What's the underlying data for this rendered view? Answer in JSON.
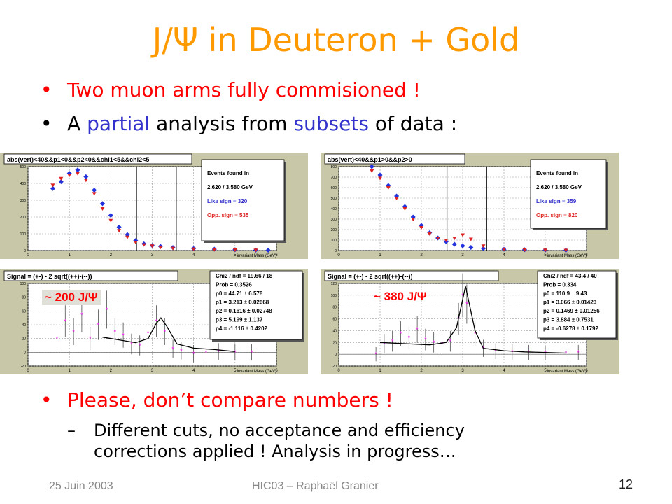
{
  "slide": {
    "title": "J/Ψ in Deuteron + Gold",
    "bullets": [
      {
        "text": "Two muon arms fully commisioned !"
      },
      {
        "parts": [
          "A ",
          "partial",
          " analysis from ",
          "subsets",
          " of data :"
        ]
      },
      {
        "text": "Please, don’t compare numbers !"
      }
    ],
    "sub_bullet": {
      "line1": "Different cuts, no acceptance and efficiency",
      "line2": "corrections applied ! Analysis in progress…"
    },
    "footer": {
      "date": "25 Juin 2003",
      "center": "HIC03 – Raphaël Granier",
      "page": "12"
    }
  },
  "colors": {
    "title": "#ff9900",
    "bullet": "#ff0000",
    "accent_blue": "#3333cc",
    "panel_bg": "#c8c8a8"
  },
  "chart_data": [
    {
      "type": "scatter",
      "title": "abs(vert)<40&&p1<0&&p2<0&&chi1<5&&chi2<5",
      "xlabel": "invariant Mass (GeV)",
      "xlim": [
        0,
        6
      ],
      "ylim": [
        0,
        500
      ],
      "x_ticks": [
        "0",
        "1",
        "2",
        "3",
        "4",
        "5",
        "6"
      ],
      "y_ticks": [
        "0",
        "100",
        "200",
        "300",
        "400",
        "500"
      ],
      "stats": [
        "Events found in",
        "2.620 / 3.580 GeV",
        "Like sign = 320",
        "Opp. sign = 535"
      ],
      "series": [
        {
          "color": "#2233dd",
          "values": [
            [
              0.6,
              370
            ],
            [
              0.8,
              410
            ],
            [
              1.0,
              460
            ],
            [
              1.2,
              480
            ],
            [
              1.4,
              440
            ],
            [
              1.6,
              360
            ],
            [
              1.8,
              280
            ],
            [
              2.0,
              210
            ],
            [
              2.2,
              140
            ],
            [
              2.4,
              95
            ],
            [
              2.6,
              60
            ],
            [
              2.8,
              40
            ],
            [
              3.0,
              30
            ],
            [
              3.2,
              25
            ],
            [
              3.5,
              18
            ],
            [
              4.0,
              12
            ],
            [
              4.5,
              8
            ],
            [
              5.0,
              5
            ],
            [
              5.5,
              3
            ],
            [
              5.8,
              2
            ]
          ]
        },
        {
          "color": "#dd2222",
          "values": [
            [
              0.6,
              390
            ],
            [
              0.8,
              430
            ],
            [
              1.0,
              450
            ],
            [
              1.2,
              460
            ],
            [
              1.4,
              420
            ],
            [
              1.6,
              340
            ],
            [
              1.8,
              250
            ],
            [
              2.0,
              180
            ],
            [
              2.2,
              120
            ],
            [
              2.4,
              80
            ],
            [
              2.6,
              50
            ],
            [
              2.8,
              35
            ],
            [
              3.0,
              28
            ],
            [
              3.2,
              20
            ],
            [
              3.5,
              14
            ],
            [
              4.0,
              10
            ],
            [
              4.5,
              6
            ],
            [
              5.0,
              4
            ],
            [
              5.5,
              3
            ]
          ]
        }
      ]
    },
    {
      "type": "scatter",
      "title": "abs(vert)<40&&p1>0&&p2>0",
      "xlabel": "invariant Mass (GeV)",
      "xlim": [
        0,
        6
      ],
      "ylim": [
        0,
        800
      ],
      "x_ticks": [
        "0",
        "1",
        "2",
        "3",
        "4",
        "5",
        "6"
      ],
      "y_ticks": [
        "0",
        "100",
        "200",
        "300",
        "400",
        "500",
        "600",
        "700",
        "800"
      ],
      "stats": [
        "Events found in",
        "2.620 / 3.580 GeV",
        "Like sign = 359",
        "Opp. sign = 820"
      ],
      "series": [
        {
          "color": "#2233dd",
          "values": [
            [
              0.8,
              800
            ],
            [
              1.0,
              720
            ],
            [
              1.2,
              620
            ],
            [
              1.4,
              520
            ],
            [
              1.6,
              420
            ],
            [
              1.8,
              320
            ],
            [
              2.0,
              240
            ],
            [
              2.2,
              170
            ],
            [
              2.4,
              120
            ],
            [
              2.6,
              85
            ],
            [
              2.8,
              60
            ],
            [
              3.0,
              45
            ],
            [
              3.2,
              30
            ],
            [
              3.5,
              20
            ],
            [
              4.0,
              12
            ],
            [
              4.5,
              8
            ],
            [
              5.0,
              5
            ],
            [
              5.5,
              3
            ]
          ]
        },
        {
          "color": "#dd2222",
          "values": [
            [
              0.8,
              760
            ],
            [
              1.0,
              690
            ],
            [
              1.2,
              600
            ],
            [
              1.4,
              500
            ],
            [
              1.6,
              400
            ],
            [
              1.8,
              300
            ],
            [
              2.0,
              220
            ],
            [
              2.2,
              160
            ],
            [
              2.4,
              120
            ],
            [
              2.6,
              100
            ],
            [
              2.8,
              120
            ],
            [
              3.0,
              150
            ],
            [
              3.2,
              110
            ],
            [
              3.5,
              45
            ],
            [
              4.0,
              14
            ],
            [
              4.5,
              8
            ],
            [
              5.0,
              5
            ],
            [
              5.5,
              3
            ]
          ]
        }
      ]
    },
    {
      "type": "scatter",
      "title": "Signal = (+-) - 2 sqrt((++)-(--))",
      "xlabel": "invariant Mass (GeV)",
      "xlim": [
        0,
        6
      ],
      "ylim": [
        -20,
        100
      ],
      "x_ticks": [
        "0",
        "1",
        "2",
        "3",
        "4",
        "5",
        "6"
      ],
      "y_ticks": [
        "-20",
        "0",
        "20",
        "40",
        "60",
        "80",
        "100"
      ],
      "annotation": "~ 200 J/Ψ",
      "stats": [
        "Chi2 / ndf = 19.66 / 18",
        "Prob  = 0.3526",
        "p0     = 44.71 ± 6.578",
        "p1     = 3.213 ± 0.02668",
        "p2     = 0.1616 ± 0.02748",
        "p3     = 5.199 ± 1.137",
        "p4     = -1.116 ± 0.4202"
      ],
      "points": [
        [
          0.7,
          20
        ],
        [
          0.9,
          45
        ],
        [
          1.1,
          30
        ],
        [
          1.3,
          55
        ],
        [
          1.5,
          20
        ],
        [
          1.7,
          40
        ],
        [
          1.9,
          62
        ],
        [
          2.1,
          30
        ],
        [
          2.3,
          25
        ],
        [
          2.5,
          12
        ],
        [
          2.7,
          10
        ],
        [
          2.9,
          28
        ],
        [
          3.1,
          45
        ],
        [
          3.3,
          30
        ],
        [
          3.5,
          5
        ],
        [
          3.7,
          2
        ],
        [
          4.0,
          -2
        ],
        [
          4.3,
          0
        ],
        [
          4.6,
          1
        ],
        [
          5.0,
          0
        ],
        [
          5.4,
          0
        ]
      ],
      "fit": [
        [
          1.8,
          22
        ],
        [
          2.2,
          18
        ],
        [
          2.6,
          14
        ],
        [
          2.9,
          20
        ],
        [
          3.1,
          42
        ],
        [
          3.21,
          50
        ],
        [
          3.35,
          38
        ],
        [
          3.6,
          12
        ],
        [
          4.0,
          6
        ],
        [
          4.5,
          4
        ],
        [
          5.0,
          1
        ]
      ]
    },
    {
      "type": "scatter",
      "title": "Signal = (+-) - 2 sqrt((++)-(--))",
      "xlabel": "invariant Mass (GeV)",
      "xlim": [
        0,
        6
      ],
      "ylim": [
        -20,
        120
      ],
      "x_ticks": [
        "0",
        "1",
        "2",
        "3",
        "4",
        "5",
        "6"
      ],
      "y_ticks": [
        "-20",
        "0",
        "20",
        "40",
        "60",
        "80",
        "100",
        "120"
      ],
      "annotation": "~ 380 J/Ψ",
      "stats": [
        "Chi2 / ndf =  43.4 / 40",
        "Prob  = 0.334",
        "p0     = 110.9 ± 9.43",
        "p1     = 3.066 ± 0.01423",
        "p2     = 0.1469 ± 0.01256",
        "p3     = 3.884 ± 0.7531",
        "p4     = -0.6278 ± 0.1792"
      ],
      "points": [
        [
          0.9,
          0
        ],
        [
          1.1,
          18
        ],
        [
          1.3,
          22
        ],
        [
          1.5,
          35
        ],
        [
          1.7,
          28
        ],
        [
          1.9,
          42
        ],
        [
          2.1,
          25
        ],
        [
          2.3,
          20
        ],
        [
          2.5,
          18
        ],
        [
          2.7,
          22
        ],
        [
          2.9,
          60
        ],
        [
          3.0,
          100
        ],
        [
          3.1,
          85
        ],
        [
          3.3,
          35
        ],
        [
          3.5,
          10
        ],
        [
          3.8,
          5
        ],
        [
          4.2,
          4
        ],
        [
          4.6,
          3
        ],
        [
          5.0,
          2
        ],
        [
          5.5,
          2
        ],
        [
          5.8,
          3
        ]
      ],
      "fit": [
        [
          1.0,
          20
        ],
        [
          1.6,
          18
        ],
        [
          2.2,
          16
        ],
        [
          2.6,
          20
        ],
        [
          2.85,
          45
        ],
        [
          3.07,
          115
        ],
        [
          3.3,
          40
        ],
        [
          3.5,
          10
        ],
        [
          4.0,
          6
        ],
        [
          4.5,
          4
        ],
        [
          5.5,
          2
        ]
      ]
    }
  ]
}
